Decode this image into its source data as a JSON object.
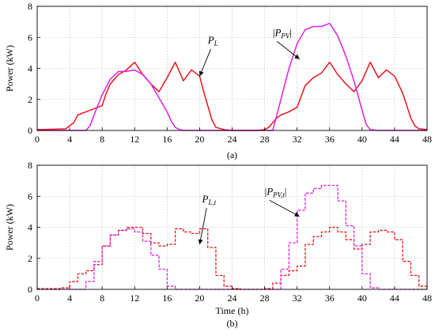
{
  "chart_data": [
    {
      "type": "line",
      "panel_label": "(a)",
      "xlabel": "",
      "ylabel": "Power (kW)",
      "xlim": [
        0,
        48
      ],
      "ylim": [
        0,
        8
      ],
      "xticks": [
        0,
        4,
        8,
        12,
        16,
        20,
        24,
        28,
        32,
        36,
        40,
        44,
        48
      ],
      "yticks": [
        0,
        2,
        4,
        6,
        8
      ],
      "grid": true,
      "series": [
        {
          "key": "load",
          "color": "#e8141c",
          "step": false,
          "x": [
            0,
            3.5,
            4,
            4.5,
            5,
            6,
            7,
            8,
            8.5,
            9,
            10,
            11,
            12,
            13,
            14,
            15,
            16,
            17,
            18,
            19,
            20,
            20.5,
            21,
            21.5,
            22,
            23,
            24,
            25,
            26,
            27,
            28,
            28.5,
            29,
            29.5,
            30,
            31,
            32,
            33,
            34,
            35,
            36,
            37,
            38,
            39,
            40,
            41,
            42,
            43,
            44,
            45,
            45.5,
            46,
            46.5,
            47,
            48
          ],
          "y": [
            0.05,
            0.1,
            0.3,
            0.5,
            1.0,
            1.2,
            1.4,
            1.6,
            2.4,
            3.0,
            3.6,
            3.9,
            4.4,
            3.6,
            3.0,
            2.5,
            3.4,
            4.4,
            3.2,
            3.9,
            3.5,
            2.5,
            1.6,
            0.7,
            0.2,
            0.05,
            0.0,
            0.0,
            0.0,
            0.0,
            0.05,
            0.2,
            0.5,
            0.8,
            1.0,
            1.2,
            1.5,
            2.9,
            3.4,
            3.7,
            4.4,
            3.6,
            3.0,
            2.5,
            3.2,
            4.4,
            3.4,
            3.9,
            3.5,
            2.4,
            1.6,
            0.8,
            0.3,
            0.1,
            0.05
          ]
        },
        {
          "key": "pv",
          "color": "#e020e0",
          "step": false,
          "x": [
            0,
            6,
            6.5,
            7,
            8,
            9,
            10,
            11,
            12,
            13,
            14,
            15,
            16,
            16.5,
            17,
            17.5,
            18,
            29,
            30,
            31,
            32,
            33,
            34,
            35,
            36,
            37,
            38,
            39,
            40,
            40.5,
            41,
            42,
            48
          ],
          "y": [
            0,
            0,
            0.3,
            1.0,
            2.3,
            3.3,
            3.8,
            3.8,
            3.9,
            3.6,
            3.0,
            2.1,
            1.2,
            0.6,
            0.2,
            0.05,
            0,
            0,
            2.0,
            4.0,
            5.6,
            6.5,
            6.7,
            6.7,
            6.9,
            6.1,
            4.8,
            3.2,
            1.3,
            0.4,
            0.05,
            0,
            0
          ]
        }
      ],
      "annotations": [
        {
          "main": "P",
          "sub": "L",
          "bars": false,
          "point": [
            20,
            3.5
          ],
          "text_at": [
            21,
            5.6
          ]
        },
        {
          "main": "P",
          "sub": "PV",
          "bars": true,
          "point": [
            32.3,
            4.6
          ],
          "text_at": [
            29,
            6.1
          ]
        }
      ]
    },
    {
      "type": "line",
      "panel_label": "(b)",
      "xlabel": "Time (h)",
      "ylabel": "Power (kW)",
      "xlim": [
        0,
        48
      ],
      "ylim": [
        0,
        8
      ],
      "xticks": [
        0,
        4,
        8,
        12,
        16,
        20,
        24,
        28,
        32,
        36,
        40,
        44,
        48
      ],
      "yticks": [
        0,
        2,
        4,
        6,
        8
      ],
      "grid": true,
      "series": [
        {
          "key": "load_t",
          "color": "#e8141c",
          "step": true,
          "dashed": true,
          "values": [
            0.05,
            0.05,
            0.05,
            0.1,
            0.5,
            1.0,
            1.2,
            1.6,
            2.8,
            3.5,
            3.8,
            4.0,
            4.0,
            3.6,
            3.0,
            2.8,
            2.9,
            3.9,
            3.7,
            3.6,
            3.9,
            2.7,
            0.9,
            0.2,
            0.05,
            0.0,
            0.0,
            0.0,
            0.05,
            0.4,
            0.9,
            1.2,
            1.5,
            2.9,
            3.4,
            3.7,
            4.0,
            3.7,
            3.2,
            2.6,
            2.9,
            3.7,
            3.8,
            3.7,
            3.2,
            1.8,
            0.9,
            0.2
          ]
        },
        {
          "key": "pv_t",
          "color": "#e020e0",
          "step": true,
          "dashed": true,
          "values": [
            0,
            0,
            0,
            0,
            0,
            0,
            0.5,
            1.8,
            2.8,
            3.5,
            3.8,
            3.9,
            3.7,
            3.1,
            2.2,
            1.3,
            0.2,
            0,
            0,
            0,
            0,
            0,
            0,
            0,
            0,
            0,
            0,
            0,
            0,
            0,
            1.3,
            3.0,
            5.1,
            6.2,
            6.5,
            6.7,
            6.7,
            5.7,
            4.1,
            2.8,
            1.0,
            0.1,
            0,
            0,
            0,
            0,
            0,
            0
          ]
        }
      ],
      "annotations": [
        {
          "main": "P",
          "sub": "L,t",
          "bars": false,
          "point": [
            20,
            2.9
          ],
          "text_at": [
            20.3,
            5.6
          ]
        },
        {
          "main": "P",
          "sub": "PV,t",
          "bars": true,
          "point": [
            32.3,
            4.7
          ],
          "text_at": [
            28,
            6.1
          ]
        }
      ]
    }
  ]
}
